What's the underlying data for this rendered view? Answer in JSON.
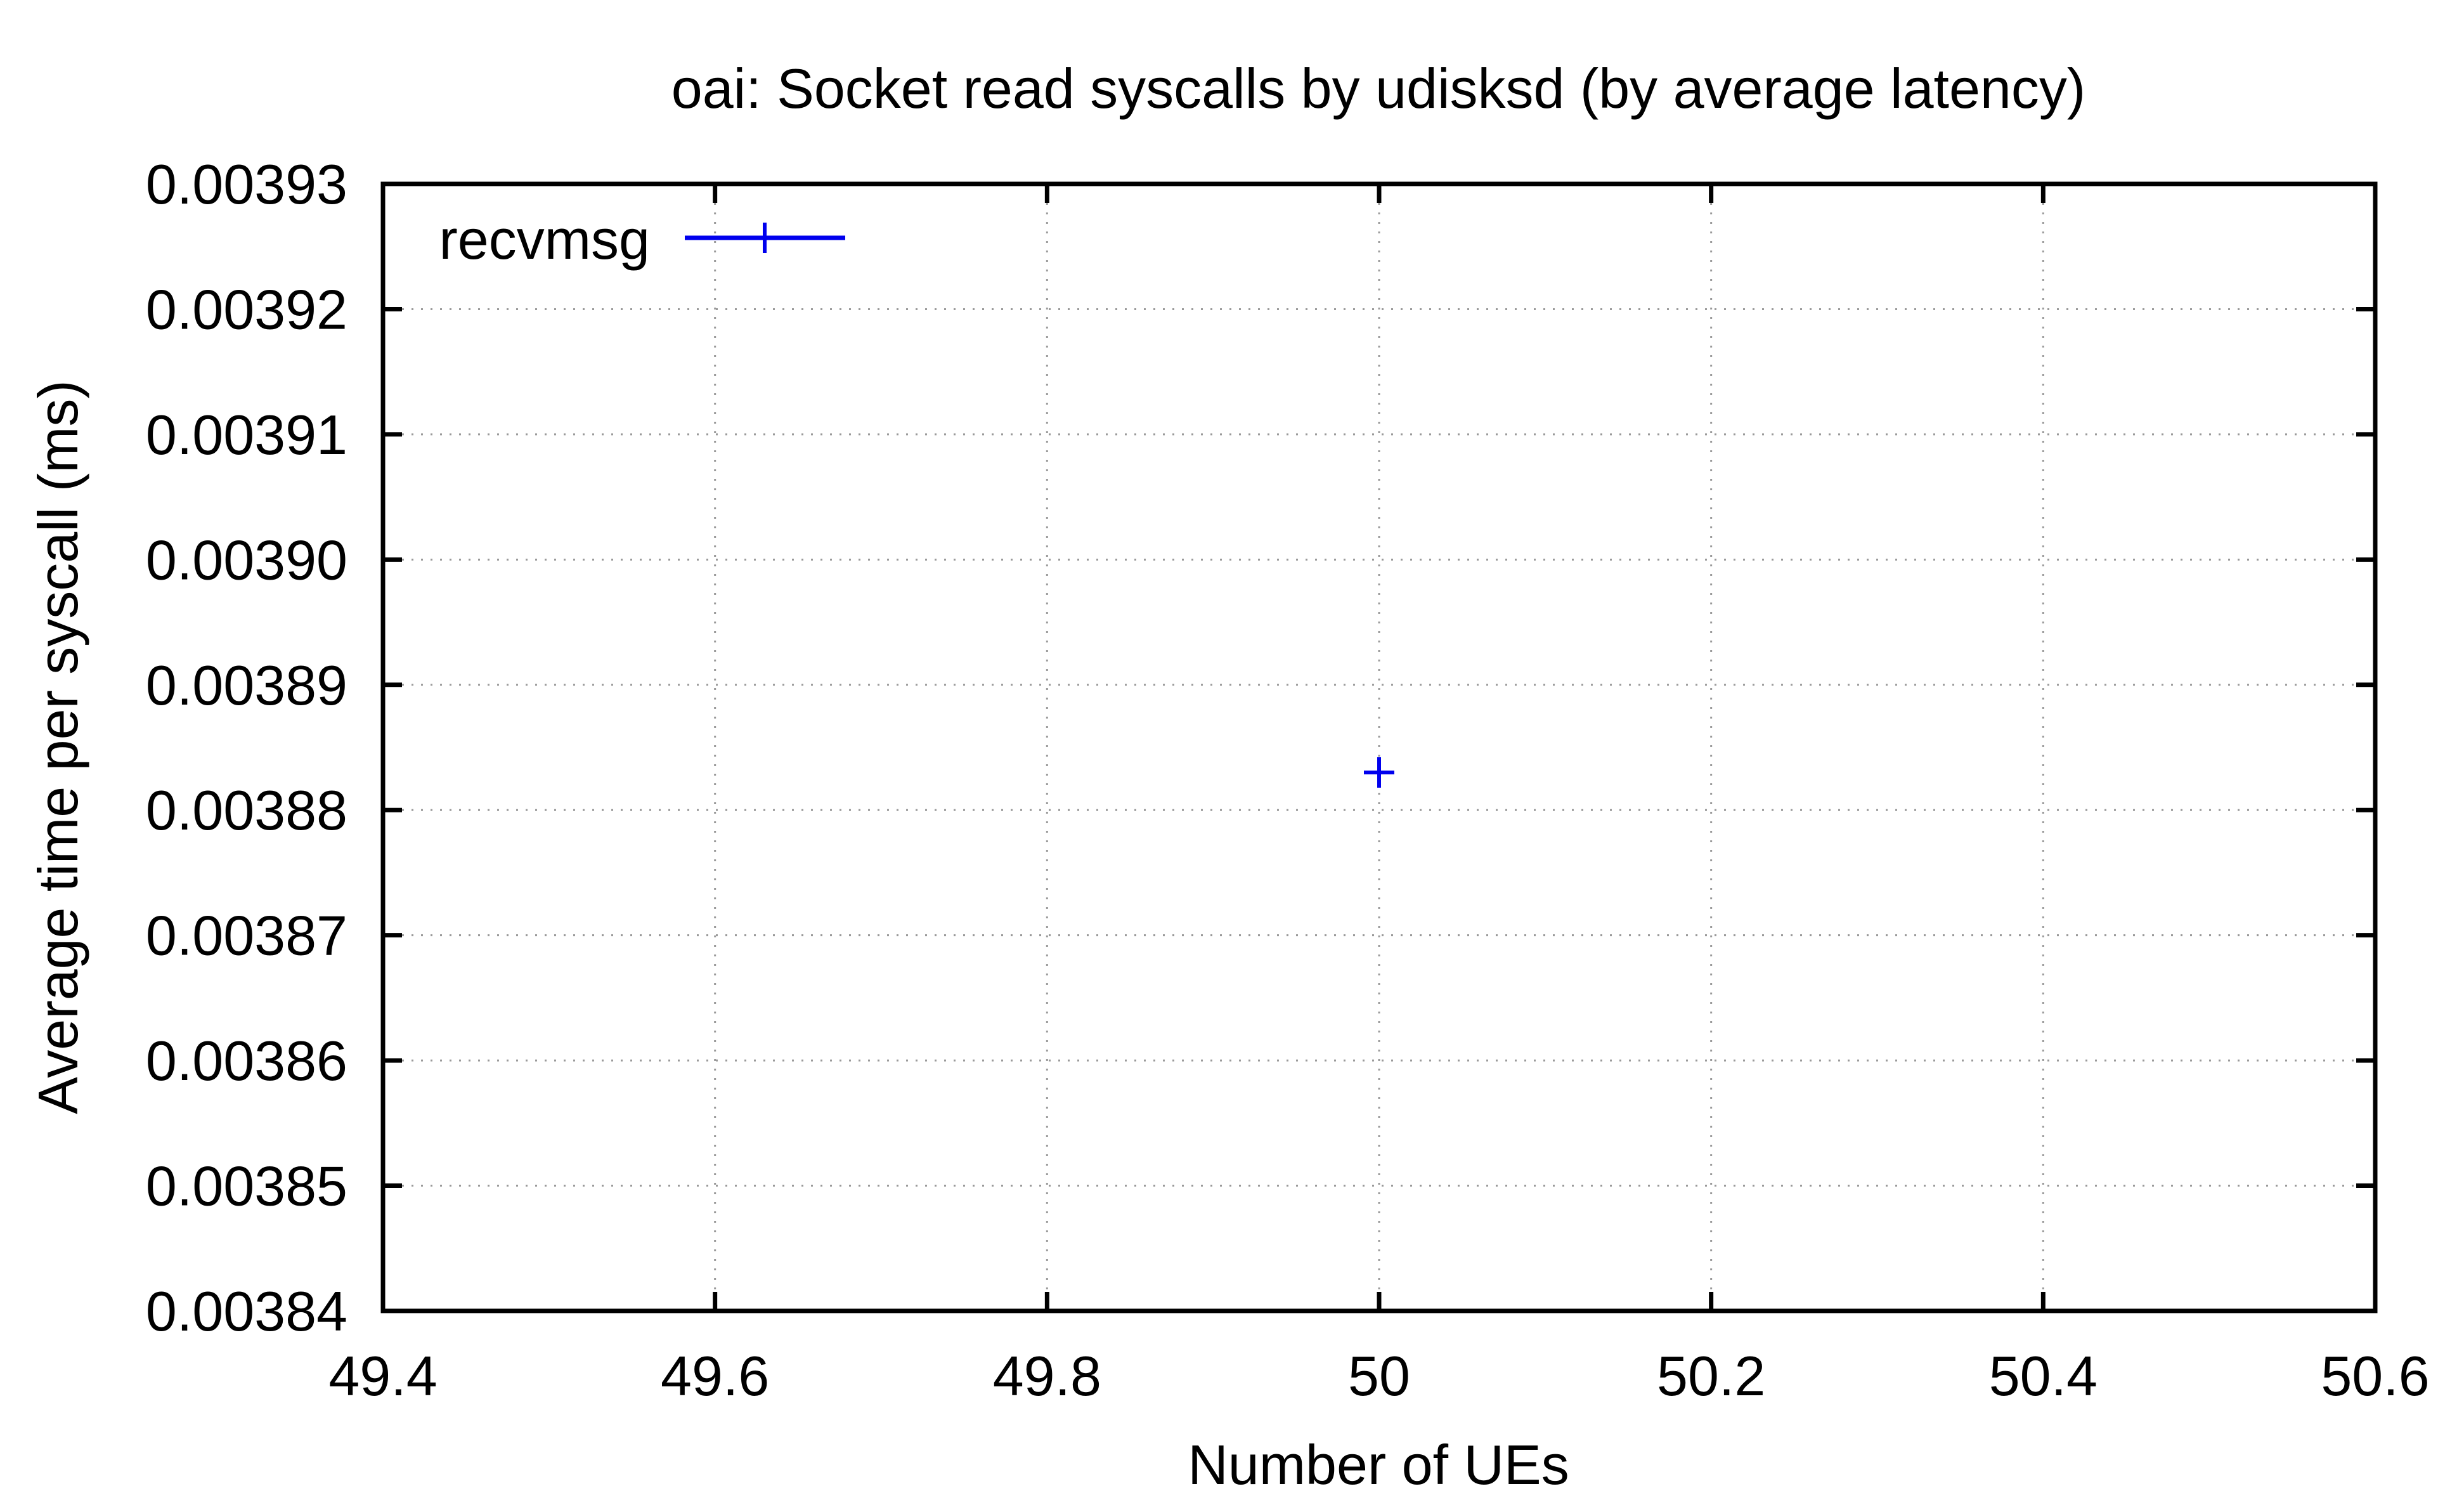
{
  "chart_data": {
    "type": "scatter",
    "title": "oai: Socket read syscalls by udisksd (by average latency)",
    "xlabel": "Number of UEs",
    "ylabel": "Average time per syscall (ms)",
    "xlim": [
      49.4,
      50.6
    ],
    "ylim": [
      0.00384,
      0.00393
    ],
    "x_ticks": [
      "49.4",
      "49.6",
      "49.8",
      "50",
      "50.2",
      "50.4",
      "50.6"
    ],
    "y_ticks": [
      "0.00384",
      "0.00385",
      "0.00386",
      "0.00387",
      "0.00388",
      "0.00389",
      "0.00390",
      "0.00391",
      "0.00392",
      "0.00393"
    ],
    "grid": true,
    "legend_position": "top-left",
    "series": [
      {
        "name": "recvmsg",
        "color": "#0000ee",
        "marker": "plus",
        "points": [
          {
            "x": 50,
            "y": 0.003883
          }
        ]
      }
    ]
  }
}
